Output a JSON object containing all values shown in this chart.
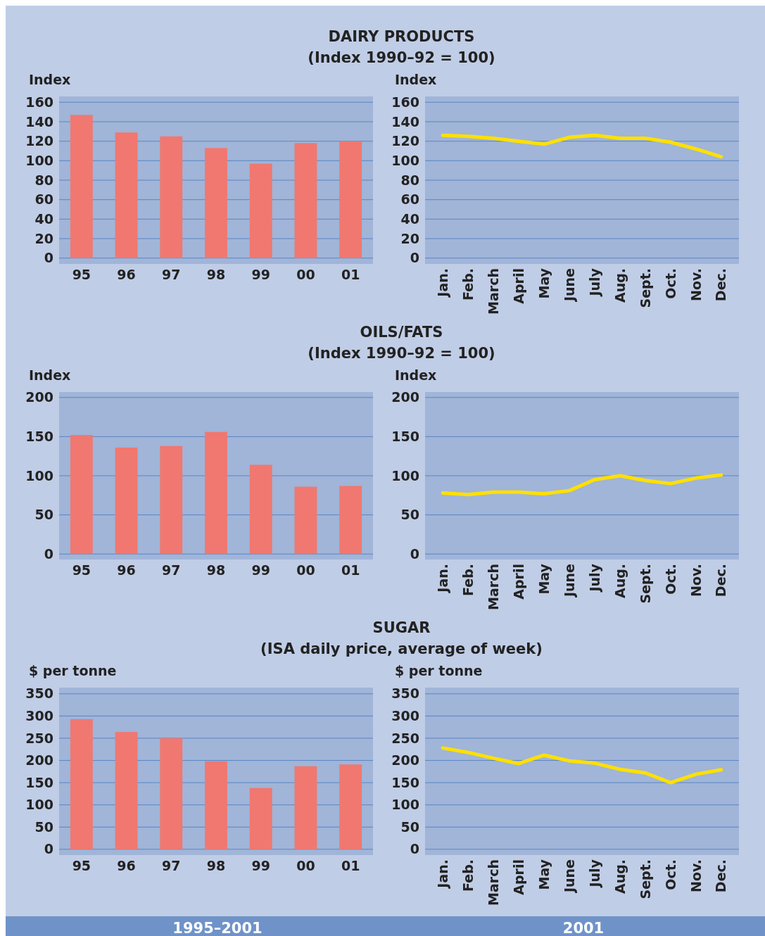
{
  "chart_data": [
    {
      "type": "bar",
      "title": "DAIRY PRODUCTS",
      "subtitle": "(Index 1990–92 = 100)",
      "ylabel": "Index",
      "categories": [
        "95",
        "96",
        "97",
        "98",
        "99",
        "00",
        "01"
      ],
      "values": [
        147,
        129,
        125,
        113,
        97,
        118,
        120
      ],
      "color": "#f07870",
      "ylim": [
        -6,
        166
      ],
      "yticks": [
        0,
        20,
        40,
        60,
        80,
        100,
        120,
        140,
        160
      ],
      "grid": "y"
    },
    {
      "type": "line",
      "ylabel": "Index",
      "categories": [
        "Jan.",
        "Feb.",
        "March",
        "April",
        "May",
        "June",
        "July",
        "Aug.",
        "Sept.",
        "Oct.",
        "Nov.",
        "Dec."
      ],
      "values": [
        126,
        125,
        123,
        120,
        117,
        124,
        126,
        123,
        123,
        119,
        112,
        104
      ],
      "color": "#ffe000",
      "ylim": [
        -6,
        166
      ],
      "yticks": [
        0,
        20,
        40,
        60,
        80,
        100,
        120,
        140,
        160
      ],
      "grid": "y"
    },
    {
      "type": "bar",
      "title": "OILS/FATS",
      "subtitle": "(Index 1990–92 = 100)",
      "ylabel": "Index",
      "categories": [
        "95",
        "96",
        "97",
        "98",
        "99",
        "00",
        "01"
      ],
      "values": [
        152,
        136,
        138,
        156,
        114,
        86,
        87
      ],
      "color": "#f07870",
      "ylim": [
        -7,
        207
      ],
      "yticks": [
        0,
        50,
        100,
        150,
        200
      ],
      "grid": "y"
    },
    {
      "type": "line",
      "ylabel": "Index",
      "categories": [
        "Jan.",
        "Feb.",
        "March",
        "April",
        "May",
        "June",
        "July",
        "Aug.",
        "Sept.",
        "Oct.",
        "Nov.",
        "Dec."
      ],
      "values": [
        78,
        76,
        79,
        79,
        77,
        81,
        95,
        100,
        94,
        90,
        97,
        101
      ],
      "color": "#ffe000",
      "ylim": [
        -7,
        207
      ],
      "yticks": [
        0,
        50,
        100,
        150,
        200
      ],
      "grid": "y"
    },
    {
      "type": "bar",
      "title": "SUGAR",
      "subtitle": "(ISA daily price, average of week)",
      "ylabel": "$ per tonne",
      "xlabel": "1995–2001",
      "categories": [
        "95",
        "96",
        "97",
        "98",
        "99",
        "00",
        "01"
      ],
      "values": [
        293,
        264,
        250,
        198,
        138,
        187,
        191
      ],
      "color": "#f07870",
      "ylim": [
        -13,
        364
      ],
      "yticks": [
        0,
        50,
        100,
        150,
        200,
        250,
        300,
        350
      ],
      "grid": "y"
    },
    {
      "type": "line",
      "ylabel": "$ per tonne",
      "xlabel": "2001",
      "categories": [
        "Jan.",
        "Feb.",
        "March",
        "April",
        "May",
        "June",
        "July",
        "Aug.",
        "Sept.",
        "Oct.",
        "Nov.",
        "Dec."
      ],
      "values": [
        228,
        218,
        205,
        193,
        212,
        199,
        194,
        180,
        172,
        150,
        169,
        179
      ],
      "color": "#ffe000",
      "ylim": [
        -13,
        364
      ],
      "yticks": [
        0,
        50,
        100,
        150,
        200,
        250,
        300,
        350
      ],
      "grid": "y"
    }
  ]
}
